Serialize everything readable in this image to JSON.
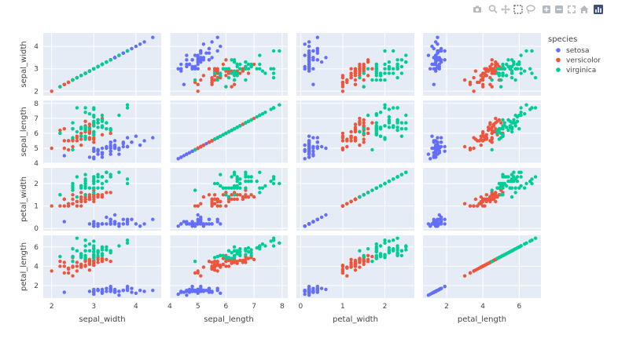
{
  "toolbar": {
    "buttons": [
      {
        "name": "camera-icon",
        "title": "Download plot as a png"
      },
      {
        "name": "zoom-icon",
        "title": "Zoom"
      },
      {
        "name": "pan-icon",
        "title": "Pan"
      },
      {
        "name": "box-select-icon",
        "title": "Box Select"
      },
      {
        "name": "lasso-select-icon",
        "title": "Lasso Select"
      },
      {
        "name": "zoom-in-icon",
        "title": "Zoom in"
      },
      {
        "name": "zoom-out-icon",
        "title": "Zoom out"
      },
      {
        "name": "autoscale-icon",
        "title": "Autoscale"
      },
      {
        "name": "home-icon",
        "title": "Reset axes"
      },
      {
        "name": "plotly-logo-icon",
        "title": "Produced with Plotly"
      }
    ]
  },
  "chart_data": {
    "type": "scatter",
    "subtype": "scatter_matrix",
    "dimensions": [
      "sepal_width",
      "sepal_length",
      "petal_width",
      "petal_length"
    ],
    "ranges": {
      "sepal_width": [
        1.8,
        4.6
      ],
      "sepal_length": [
        4.0,
        8.2
      ],
      "petal_width": [
        -0.1,
        2.7
      ],
      "petal_length": [
        0.7,
        7.2
      ]
    },
    "ticks": {
      "sepal_width": [
        2,
        3,
        4
      ],
      "sepal_length": [
        4,
        5,
        6,
        7,
        8
      ],
      "petal_width": [
        0,
        1,
        2
      ],
      "petal_length": [
        2,
        4,
        6
      ]
    },
    "tick_labels": {
      "sepal_width": [
        "2",
        "3",
        "4"
      ],
      "sepal_length": [
        "4",
        "5",
        "6",
        "7",
        "8"
      ],
      "petal_width": [
        "0",
        "1",
        "2"
      ],
      "petal_length": [
        "2",
        "4",
        "6"
      ]
    },
    "legend": {
      "title": "species",
      "entries": [
        "setosa",
        "versicolor",
        "virginica"
      ],
      "position": "top-right"
    },
    "colors": {
      "setosa": "#636efa",
      "versicolor": "#EF553B",
      "virginica": "#00cc96",
      "plot_bg": "#e5ecf6",
      "grid": "#ffffff"
    },
    "series": [
      {
        "name": "setosa",
        "sepal_length": [
          5.1,
          4.9,
          4.7,
          4.6,
          5.0,
          5.4,
          4.6,
          5.0,
          4.4,
          4.9,
          5.4,
          4.8,
          4.8,
          4.3,
          5.8,
          5.7,
          5.4,
          5.1,
          5.7,
          5.1,
          5.4,
          5.1,
          4.6,
          5.1,
          4.8,
          5.0,
          5.0,
          5.2,
          5.2,
          4.7,
          4.8,
          5.4,
          5.2,
          5.5,
          4.9,
          5.0,
          5.5,
          4.9,
          4.4,
          5.1,
          5.0,
          4.5,
          4.4,
          5.0,
          5.1,
          4.8,
          5.1,
          4.6,
          5.3,
          5.0
        ],
        "sepal_width": [
          3.5,
          3.0,
          3.2,
          3.1,
          3.6,
          3.9,
          3.4,
          3.4,
          2.9,
          3.1,
          3.7,
          3.4,
          3.0,
          3.0,
          4.0,
          4.4,
          3.9,
          3.5,
          3.8,
          3.8,
          3.4,
          3.7,
          3.6,
          3.3,
          3.4,
          3.0,
          3.4,
          3.5,
          3.4,
          3.2,
          3.1,
          3.4,
          4.1,
          4.2,
          3.1,
          3.2,
          3.5,
          3.6,
          3.0,
          3.4,
          3.5,
          2.3,
          3.2,
          3.5,
          3.8,
          3.0,
          3.8,
          3.2,
          3.7,
          3.3
        ],
        "petal_length": [
          1.4,
          1.4,
          1.3,
          1.5,
          1.4,
          1.7,
          1.4,
          1.5,
          1.4,
          1.5,
          1.5,
          1.6,
          1.4,
          1.1,
          1.2,
          1.5,
          1.3,
          1.4,
          1.7,
          1.5,
          1.7,
          1.5,
          1.0,
          1.7,
          1.9,
          1.6,
          1.6,
          1.5,
          1.4,
          1.6,
          1.6,
          1.5,
          1.5,
          1.4,
          1.5,
          1.2,
          1.3,
          1.4,
          1.3,
          1.5,
          1.3,
          1.3,
          1.3,
          1.6,
          1.9,
          1.4,
          1.6,
          1.4,
          1.5,
          1.4
        ],
        "petal_width": [
          0.2,
          0.2,
          0.2,
          0.2,
          0.2,
          0.4,
          0.3,
          0.2,
          0.2,
          0.1,
          0.2,
          0.2,
          0.1,
          0.1,
          0.2,
          0.4,
          0.4,
          0.3,
          0.3,
          0.3,
          0.2,
          0.4,
          0.2,
          0.5,
          0.2,
          0.2,
          0.4,
          0.2,
          0.2,
          0.2,
          0.2,
          0.4,
          0.1,
          0.2,
          0.2,
          0.2,
          0.2,
          0.1,
          0.2,
          0.2,
          0.3,
          0.3,
          0.2,
          0.6,
          0.4,
          0.3,
          0.2,
          0.2,
          0.2,
          0.2
        ]
      },
      {
        "name": "versicolor",
        "sepal_length": [
          7.0,
          6.4,
          6.9,
          5.5,
          6.5,
          5.7,
          6.3,
          4.9,
          6.6,
          5.2,
          5.0,
          5.9,
          6.0,
          6.1,
          5.6,
          6.7,
          5.6,
          5.8,
          6.2,
          5.6,
          5.9,
          6.1,
          6.3,
          6.1,
          6.4,
          6.6,
          6.8,
          6.7,
          6.0,
          5.7,
          5.5,
          5.5,
          5.8,
          6.0,
          5.4,
          6.0,
          6.7,
          6.3,
          5.6,
          5.5,
          5.5,
          6.1,
          5.8,
          5.0,
          5.6,
          5.7,
          5.7,
          6.2,
          5.1,
          5.7
        ],
        "sepal_width": [
          3.2,
          3.2,
          3.1,
          2.3,
          2.8,
          2.8,
          3.3,
          2.4,
          2.9,
          2.7,
          2.0,
          3.0,
          2.2,
          2.9,
          2.9,
          3.1,
          3.0,
          2.7,
          2.2,
          2.5,
          3.2,
          2.8,
          2.5,
          2.8,
          2.9,
          3.0,
          2.8,
          3.0,
          2.9,
          2.6,
          2.4,
          2.4,
          2.7,
          2.7,
          3.0,
          3.4,
          3.1,
          2.3,
          3.0,
          2.5,
          2.6,
          3.0,
          2.6,
          2.3,
          2.7,
          3.0,
          2.9,
          2.9,
          2.5,
          2.8
        ],
        "petal_length": [
          4.7,
          4.5,
          4.9,
          4.0,
          4.6,
          4.5,
          4.7,
          3.3,
          4.6,
          3.9,
          3.5,
          4.2,
          4.0,
          4.7,
          3.6,
          4.4,
          4.5,
          4.1,
          4.5,
          3.9,
          4.8,
          4.0,
          4.9,
          4.7,
          4.3,
          4.4,
          4.8,
          5.0,
          4.5,
          3.5,
          3.8,
          3.7,
          3.9,
          5.1,
          4.5,
          4.5,
          4.7,
          4.4,
          4.1,
          4.0,
          4.4,
          4.6,
          4.0,
          3.3,
          4.2,
          4.2,
          4.2,
          4.3,
          3.0,
          4.1
        ],
        "petal_width": [
          1.4,
          1.5,
          1.5,
          1.3,
          1.5,
          1.3,
          1.6,
          1.0,
          1.3,
          1.4,
          1.0,
          1.5,
          1.0,
          1.4,
          1.3,
          1.4,
          1.5,
          1.0,
          1.5,
          1.1,
          1.8,
          1.3,
          1.5,
          1.2,
          1.3,
          1.4,
          1.4,
          1.7,
          1.5,
          1.0,
          1.1,
          1.0,
          1.2,
          1.6,
          1.5,
          1.6,
          1.5,
          1.3,
          1.3,
          1.3,
          1.2,
          1.4,
          1.2,
          1.0,
          1.3,
          1.2,
          1.3,
          1.3,
          1.1,
          1.3
        ]
      },
      {
        "name": "virginica",
        "sepal_length": [
          6.3,
          5.8,
          7.1,
          6.3,
          6.5,
          7.6,
          4.9,
          7.3,
          6.7,
          7.2,
          6.5,
          6.4,
          6.8,
          5.7,
          5.8,
          6.4,
          6.5,
          7.7,
          7.7,
          6.0,
          6.9,
          5.6,
          7.7,
          6.3,
          6.7,
          7.2,
          6.2,
          6.1,
          6.4,
          7.2,
          7.4,
          7.9,
          6.4,
          6.3,
          6.1,
          7.7,
          6.3,
          6.4,
          6.0,
          6.9,
          6.7,
          6.9,
          5.8,
          6.8,
          6.7,
          6.7,
          6.3,
          6.5,
          6.2,
          5.9
        ],
        "sepal_width": [
          3.3,
          2.7,
          3.0,
          2.9,
          3.0,
          3.0,
          2.5,
          2.9,
          2.5,
          3.6,
          3.2,
          2.7,
          3.0,
          2.5,
          2.8,
          3.2,
          3.0,
          3.8,
          2.6,
          2.2,
          3.2,
          2.8,
          2.8,
          2.7,
          3.3,
          3.2,
          2.8,
          3.0,
          2.8,
          3.0,
          2.8,
          3.8,
          2.8,
          2.8,
          2.6,
          3.0,
          3.4,
          3.1,
          3.0,
          3.1,
          3.1,
          3.1,
          2.7,
          3.2,
          3.3,
          3.0,
          2.5,
          3.0,
          3.4,
          3.0
        ],
        "petal_length": [
          6.0,
          5.1,
          5.9,
          5.6,
          5.8,
          6.6,
          4.5,
          6.3,
          5.8,
          6.1,
          5.1,
          5.3,
          5.5,
          5.0,
          5.1,
          5.3,
          5.5,
          6.7,
          6.9,
          5.0,
          5.7,
          4.9,
          6.7,
          4.9,
          5.7,
          6.0,
          4.8,
          4.9,
          5.6,
          5.8,
          6.1,
          6.4,
          5.6,
          5.1,
          5.6,
          6.1,
          5.6,
          5.5,
          4.8,
          5.4,
          5.6,
          5.1,
          5.1,
          5.9,
          5.7,
          5.2,
          5.0,
          5.2,
          5.4,
          5.1
        ],
        "petal_width": [
          2.5,
          1.9,
          2.1,
          1.8,
          2.2,
          2.1,
          1.7,
          1.8,
          1.8,
          2.5,
          2.0,
          1.9,
          2.1,
          2.0,
          2.4,
          2.3,
          1.8,
          2.2,
          2.3,
          1.5,
          2.3,
          2.0,
          2.0,
          1.8,
          2.1,
          1.8,
          1.8,
          1.8,
          2.1,
          1.6,
          1.9,
          2.0,
          2.2,
          1.5,
          1.4,
          2.3,
          2.4,
          1.8,
          1.8,
          2.1,
          2.4,
          2.3,
          1.9,
          2.3,
          2.5,
          2.3,
          1.9,
          2.0,
          2.3,
          1.8
        ]
      }
    ]
  }
}
